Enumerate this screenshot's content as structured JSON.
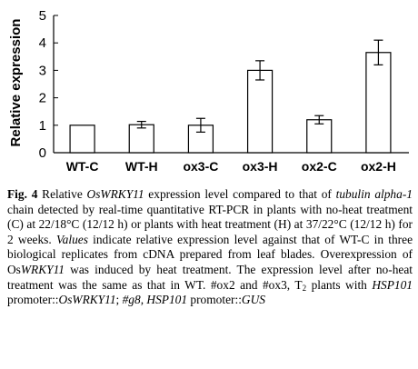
{
  "chart_data": {
    "type": "bar",
    "title": "",
    "xlabel": "",
    "ylabel": "Relative expression",
    "ylim": [
      0,
      5
    ],
    "yticks": [
      0,
      1,
      2,
      3,
      4,
      5
    ],
    "grid": false,
    "legend": "none",
    "categories": [
      "WT-C",
      "WT-H",
      "ox3-C",
      "ox3-H",
      "ox2-C",
      "ox2-H"
    ],
    "values": [
      1.0,
      1.02,
      1.0,
      3.0,
      1.2,
      3.65
    ],
    "errors": [
      0,
      0.12,
      0.25,
      0.35,
      0.15,
      0.45
    ],
    "bar_fill": "#ffffff",
    "bar_stroke": "#000000"
  },
  "caption": {
    "fig_label": "Fig. 4",
    "seg1": " Relative ",
    "gene1": "OsWRKY11",
    "seg2": " expression level compared to that of ",
    "gene2": "tubulin alpha-1",
    "seg3": " chain detected by real-time quantitative RT-PCR in plants with no-heat treatment (C) at 22/18°C (12/12 h) or plants with heat treatment (H) at 37/22°C (12/12 h) for 2 weeks. ",
    "values_word": "Values",
    "seg4": " indicate relative expression level against that of WT-C in three biological replicates from cDNA prepared from leaf blades. Overexpression of Os",
    "gene3": "WRKY11",
    "seg5": " was induced by heat treatment. The expression level after no-heat treatment was the same as that in WT. #ox2 and #ox3, T",
    "sub": "2",
    "seg6": " plants with ",
    "gene4": "HSP101",
    "seg7": " promoter::",
    "gene5": "OsWRKY11",
    "seg8": "; ",
    "gene6": "#g8",
    "seg9": ", ",
    "gene7": "HSP101",
    "seg10": " promoter::",
    "gene8": "GUS"
  }
}
